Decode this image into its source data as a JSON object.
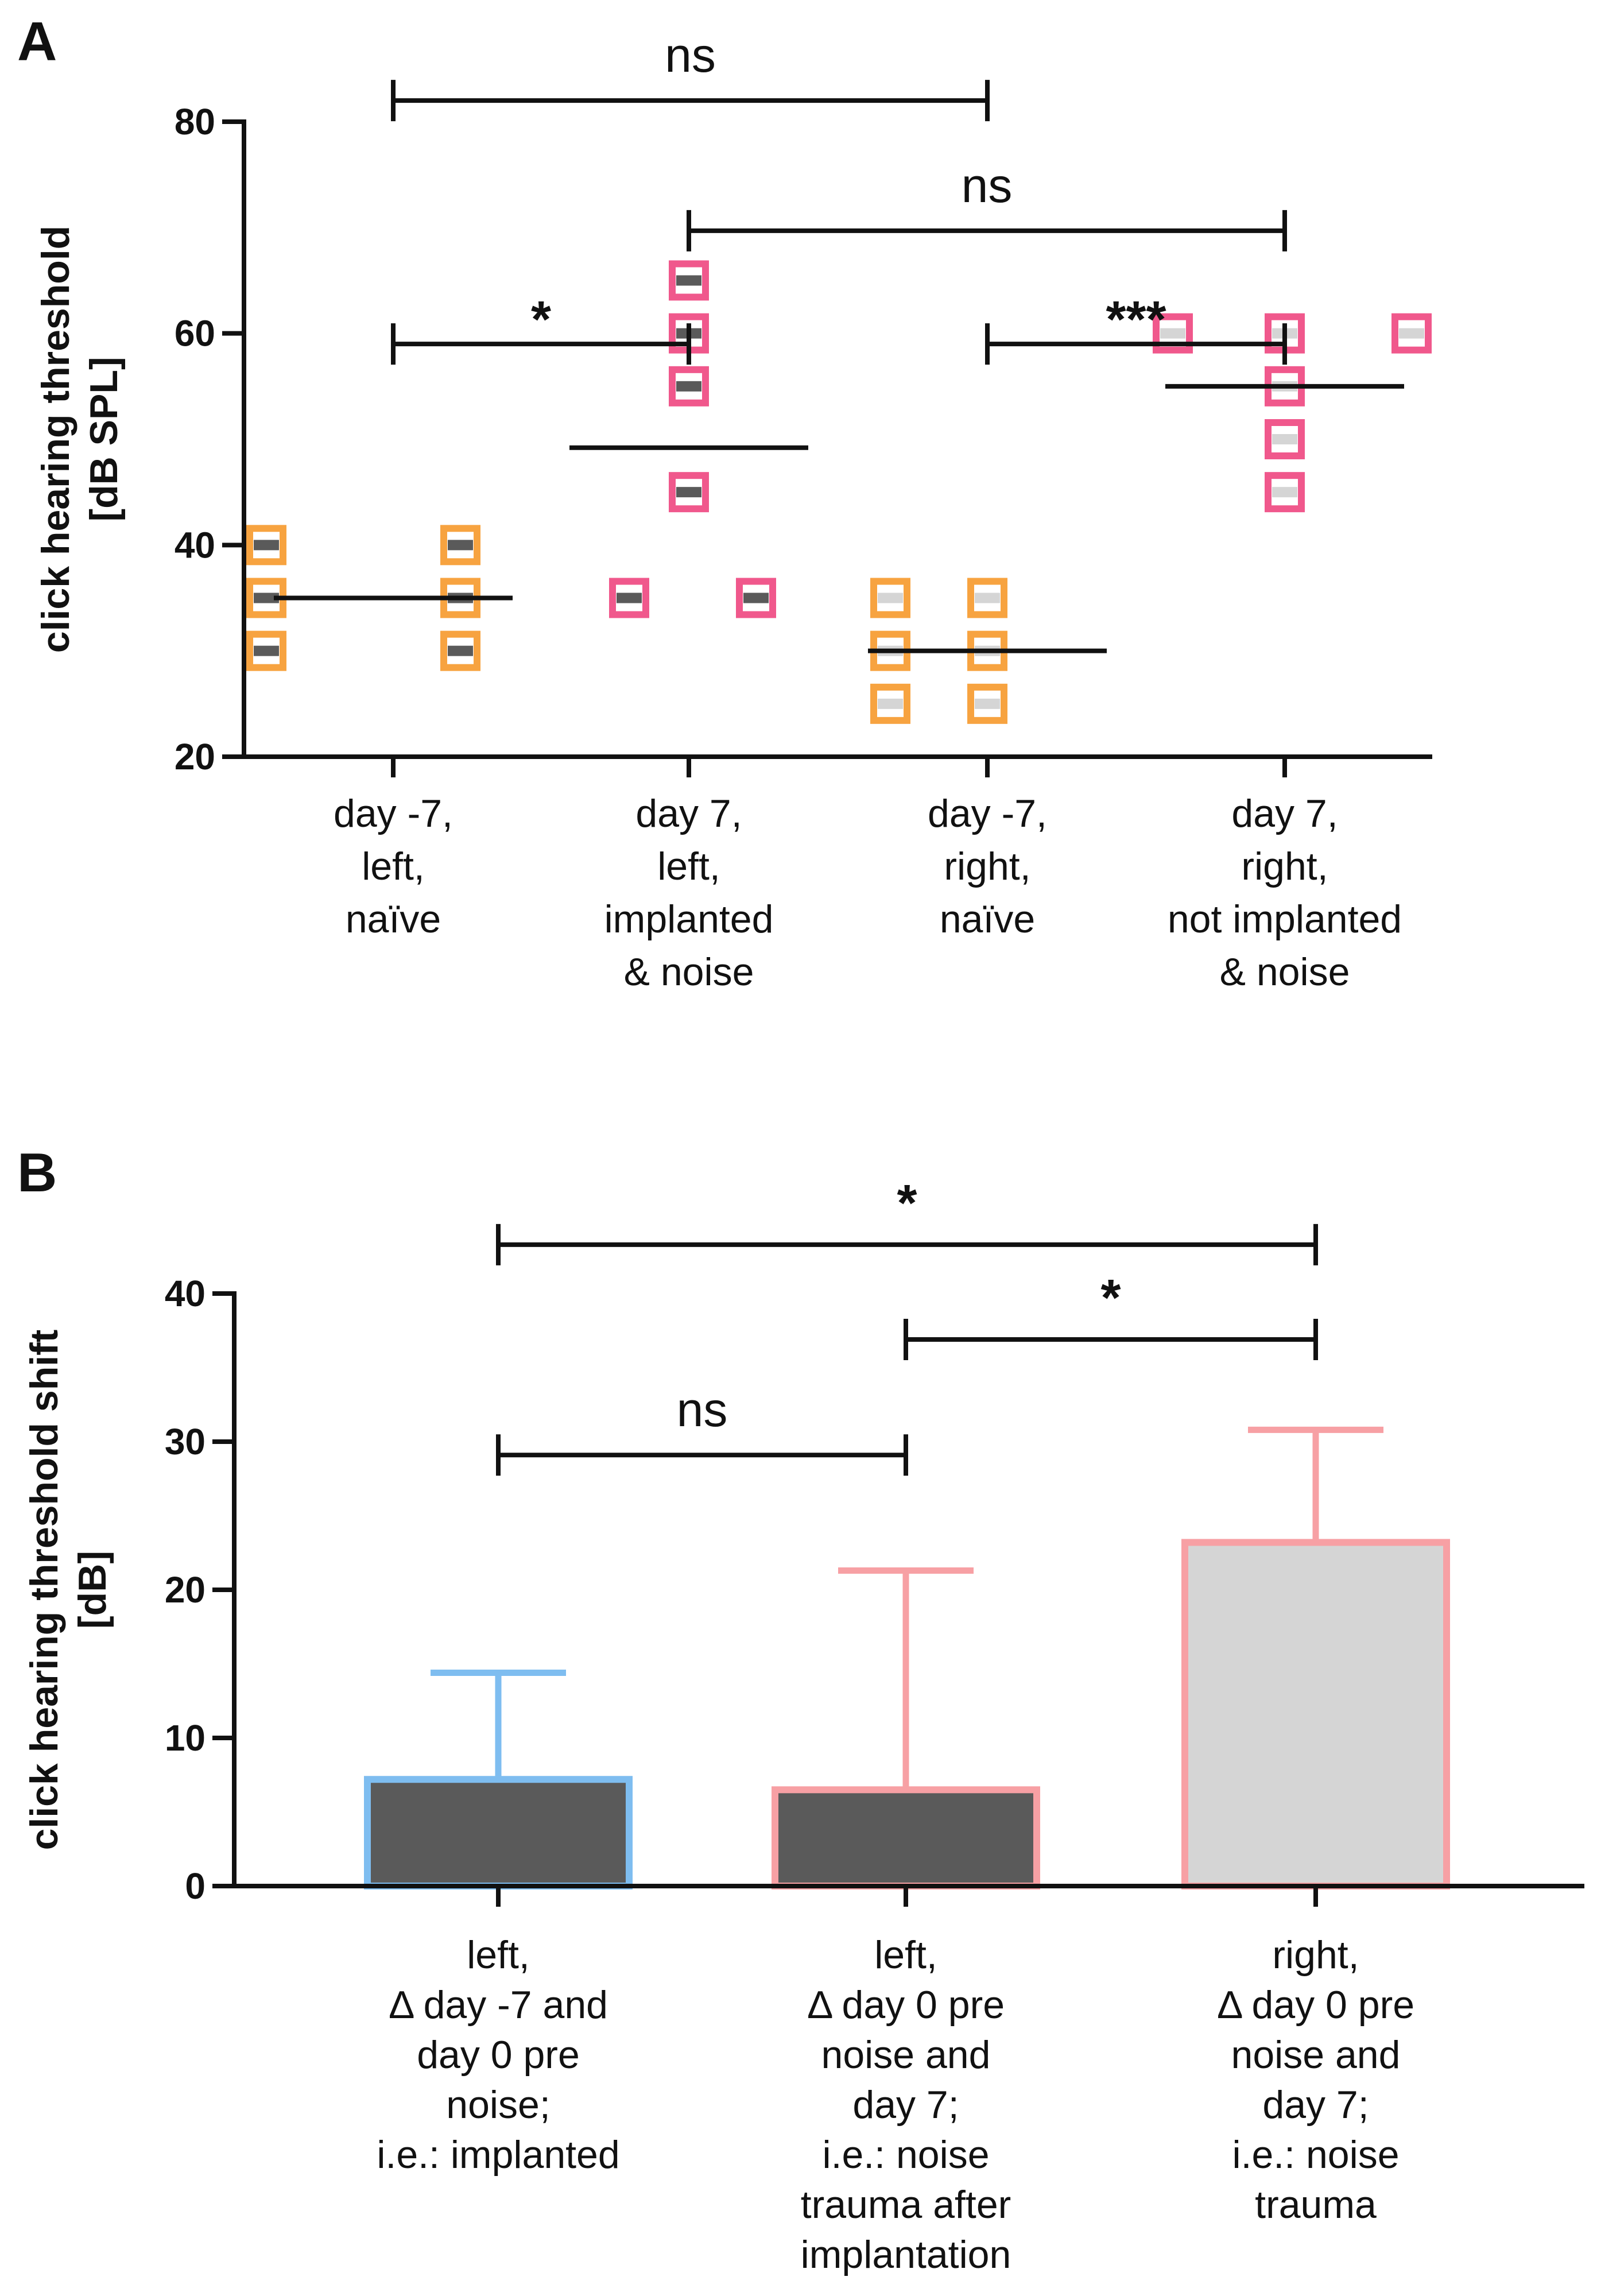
{
  "colors": {
    "orange": "#F7A340",
    "pink": "#F0588C",
    "dark_gray": "#5A5A5A",
    "light_gray": "#D5D5D5",
    "blue": "#7EBDF0",
    "salmon": "#F7A0A4",
    "black": "#111111"
  },
  "chart_data": [
    {
      "panel": "A",
      "type": "scatter",
      "ylabel_lines": [
        "click hearing threshold",
        "[dB SPL]"
      ],
      "ylim": [
        20,
        80
      ],
      "yticks": [
        20,
        40,
        60,
        80
      ],
      "categories": [
        [
          "day -7,",
          "left,",
          "naïve"
        ],
        [
          "day 7,",
          "left,",
          "implanted",
          "& noise"
        ],
        [
          "day -7,",
          "right,",
          "naïve"
        ],
        [
          "day 7,",
          "right,",
          "not implanted",
          "& noise"
        ]
      ],
      "groups": [
        {
          "color": "orange",
          "fill": "dark_gray",
          "points": [
            [
              -0.17,
              40
            ],
            [
              0.09,
              40
            ],
            [
              -0.17,
              35
            ],
            [
              0.09,
              35
            ],
            [
              -0.17,
              30
            ],
            [
              0.09,
              30
            ]
          ],
          "mean": 35
        },
        {
          "color": "pink",
          "fill": "dark_gray",
          "points": [
            [
              0,
              65
            ],
            [
              0,
              60
            ],
            [
              0,
              55
            ],
            [
              0,
              45
            ],
            [
              -0.08,
              35
            ],
            [
              0.09,
              35
            ]
          ],
          "mean": 49.2
        },
        {
          "color": "orange",
          "fill": "light_gray",
          "points": [
            [
              -0.13,
              35
            ],
            [
              0.0,
              35
            ],
            [
              -0.13,
              30
            ],
            [
              0.0,
              30
            ],
            [
              -0.13,
              25
            ],
            [
              0.0,
              25
            ]
          ],
          "mean": 30
        },
        {
          "color": "pink",
          "fill": "light_gray",
          "points": [
            [
              -0.15,
              60
            ],
            [
              0.0,
              60
            ],
            [
              0.17,
              60
            ],
            [
              0.0,
              55
            ],
            [
              0.0,
              50
            ],
            [
              0.0,
              45
            ]
          ],
          "mean": 55
        }
      ],
      "significance": [
        {
          "from": 0,
          "to": 2,
          "y": 82,
          "label": "ns"
        },
        {
          "from": 1,
          "to": 3,
          "y": 69.7,
          "label": "ns"
        },
        {
          "from": 0,
          "to": 1,
          "y": 59,
          "label": "*"
        },
        {
          "from": 2,
          "to": 3,
          "y": 59,
          "label": "***"
        }
      ]
    },
    {
      "panel": "B",
      "type": "bar",
      "ylabel_lines": [
        "click hearing threshold shift",
        "[dB]"
      ],
      "ylim": [
        0,
        40
      ],
      "yticks": [
        0,
        10,
        20,
        30,
        40
      ],
      "categories": [
        [
          "left,",
          "Δ day -7 and",
          "day 0 pre",
          "noise;",
          "i.e.: implanted"
        ],
        [
          "left,",
          "Δ day 0 pre",
          "noise and",
          "day 7;",
          "i.e.: noise",
          "trauma after",
          "implantation"
        ],
        [
          "right,",
          "Δ day 0 pre",
          "noise and",
          "day 7;",
          "i.e.: noise",
          "trauma"
        ]
      ],
      "values": [
        7.2,
        6.5,
        23.2
      ],
      "errors": [
        7.2,
        14.8,
        7.6
      ],
      "bar_fills": [
        "dark_gray",
        "dark_gray",
        "light_gray"
      ],
      "bar_strokes": [
        "blue",
        "salmon",
        "salmon"
      ],
      "significance": [
        {
          "from": 0,
          "to": 2,
          "y": 43.3,
          "label": "*"
        },
        {
          "from": 1,
          "to": 2,
          "y": 36.9,
          "label": "*"
        },
        {
          "from": 0,
          "to": 1,
          "y": 29.1,
          "label": "ns"
        }
      ]
    }
  ]
}
